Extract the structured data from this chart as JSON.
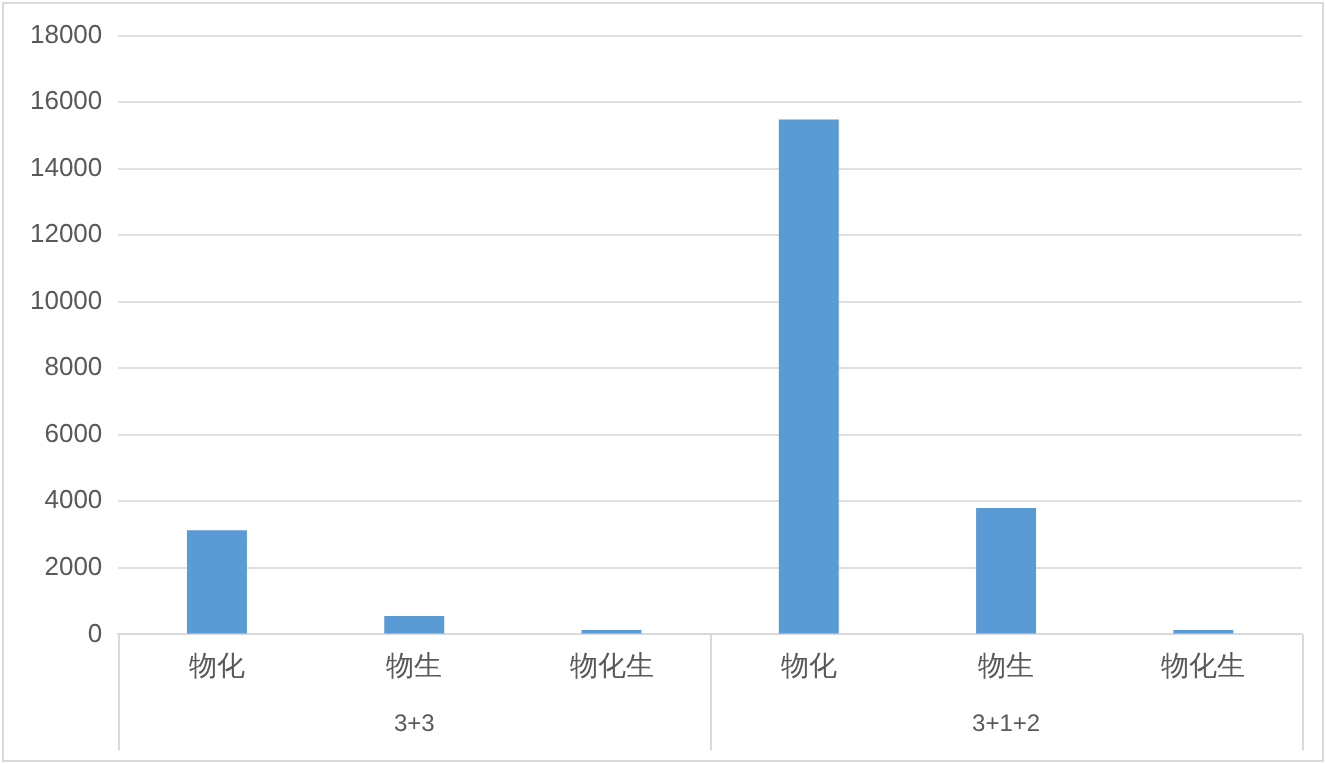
{
  "chart_data": {
    "type": "bar",
    "categories": [
      "物化",
      "物生",
      "物化生",
      "物化",
      "物生",
      "物化生"
    ],
    "values": [
      3130,
      550,
      130,
      15480,
      3800,
      130
    ],
    "color": "#5b9bd5",
    "ylim": [
      0,
      18000
    ],
    "yticks": [
      0,
      2000,
      4000,
      6000,
      8000,
      10000,
      12000,
      14000,
      16000,
      18000
    ],
    "grid": "y",
    "legend": false,
    "annotations": [
      "3+3",
      "3+1+2"
    ]
  }
}
